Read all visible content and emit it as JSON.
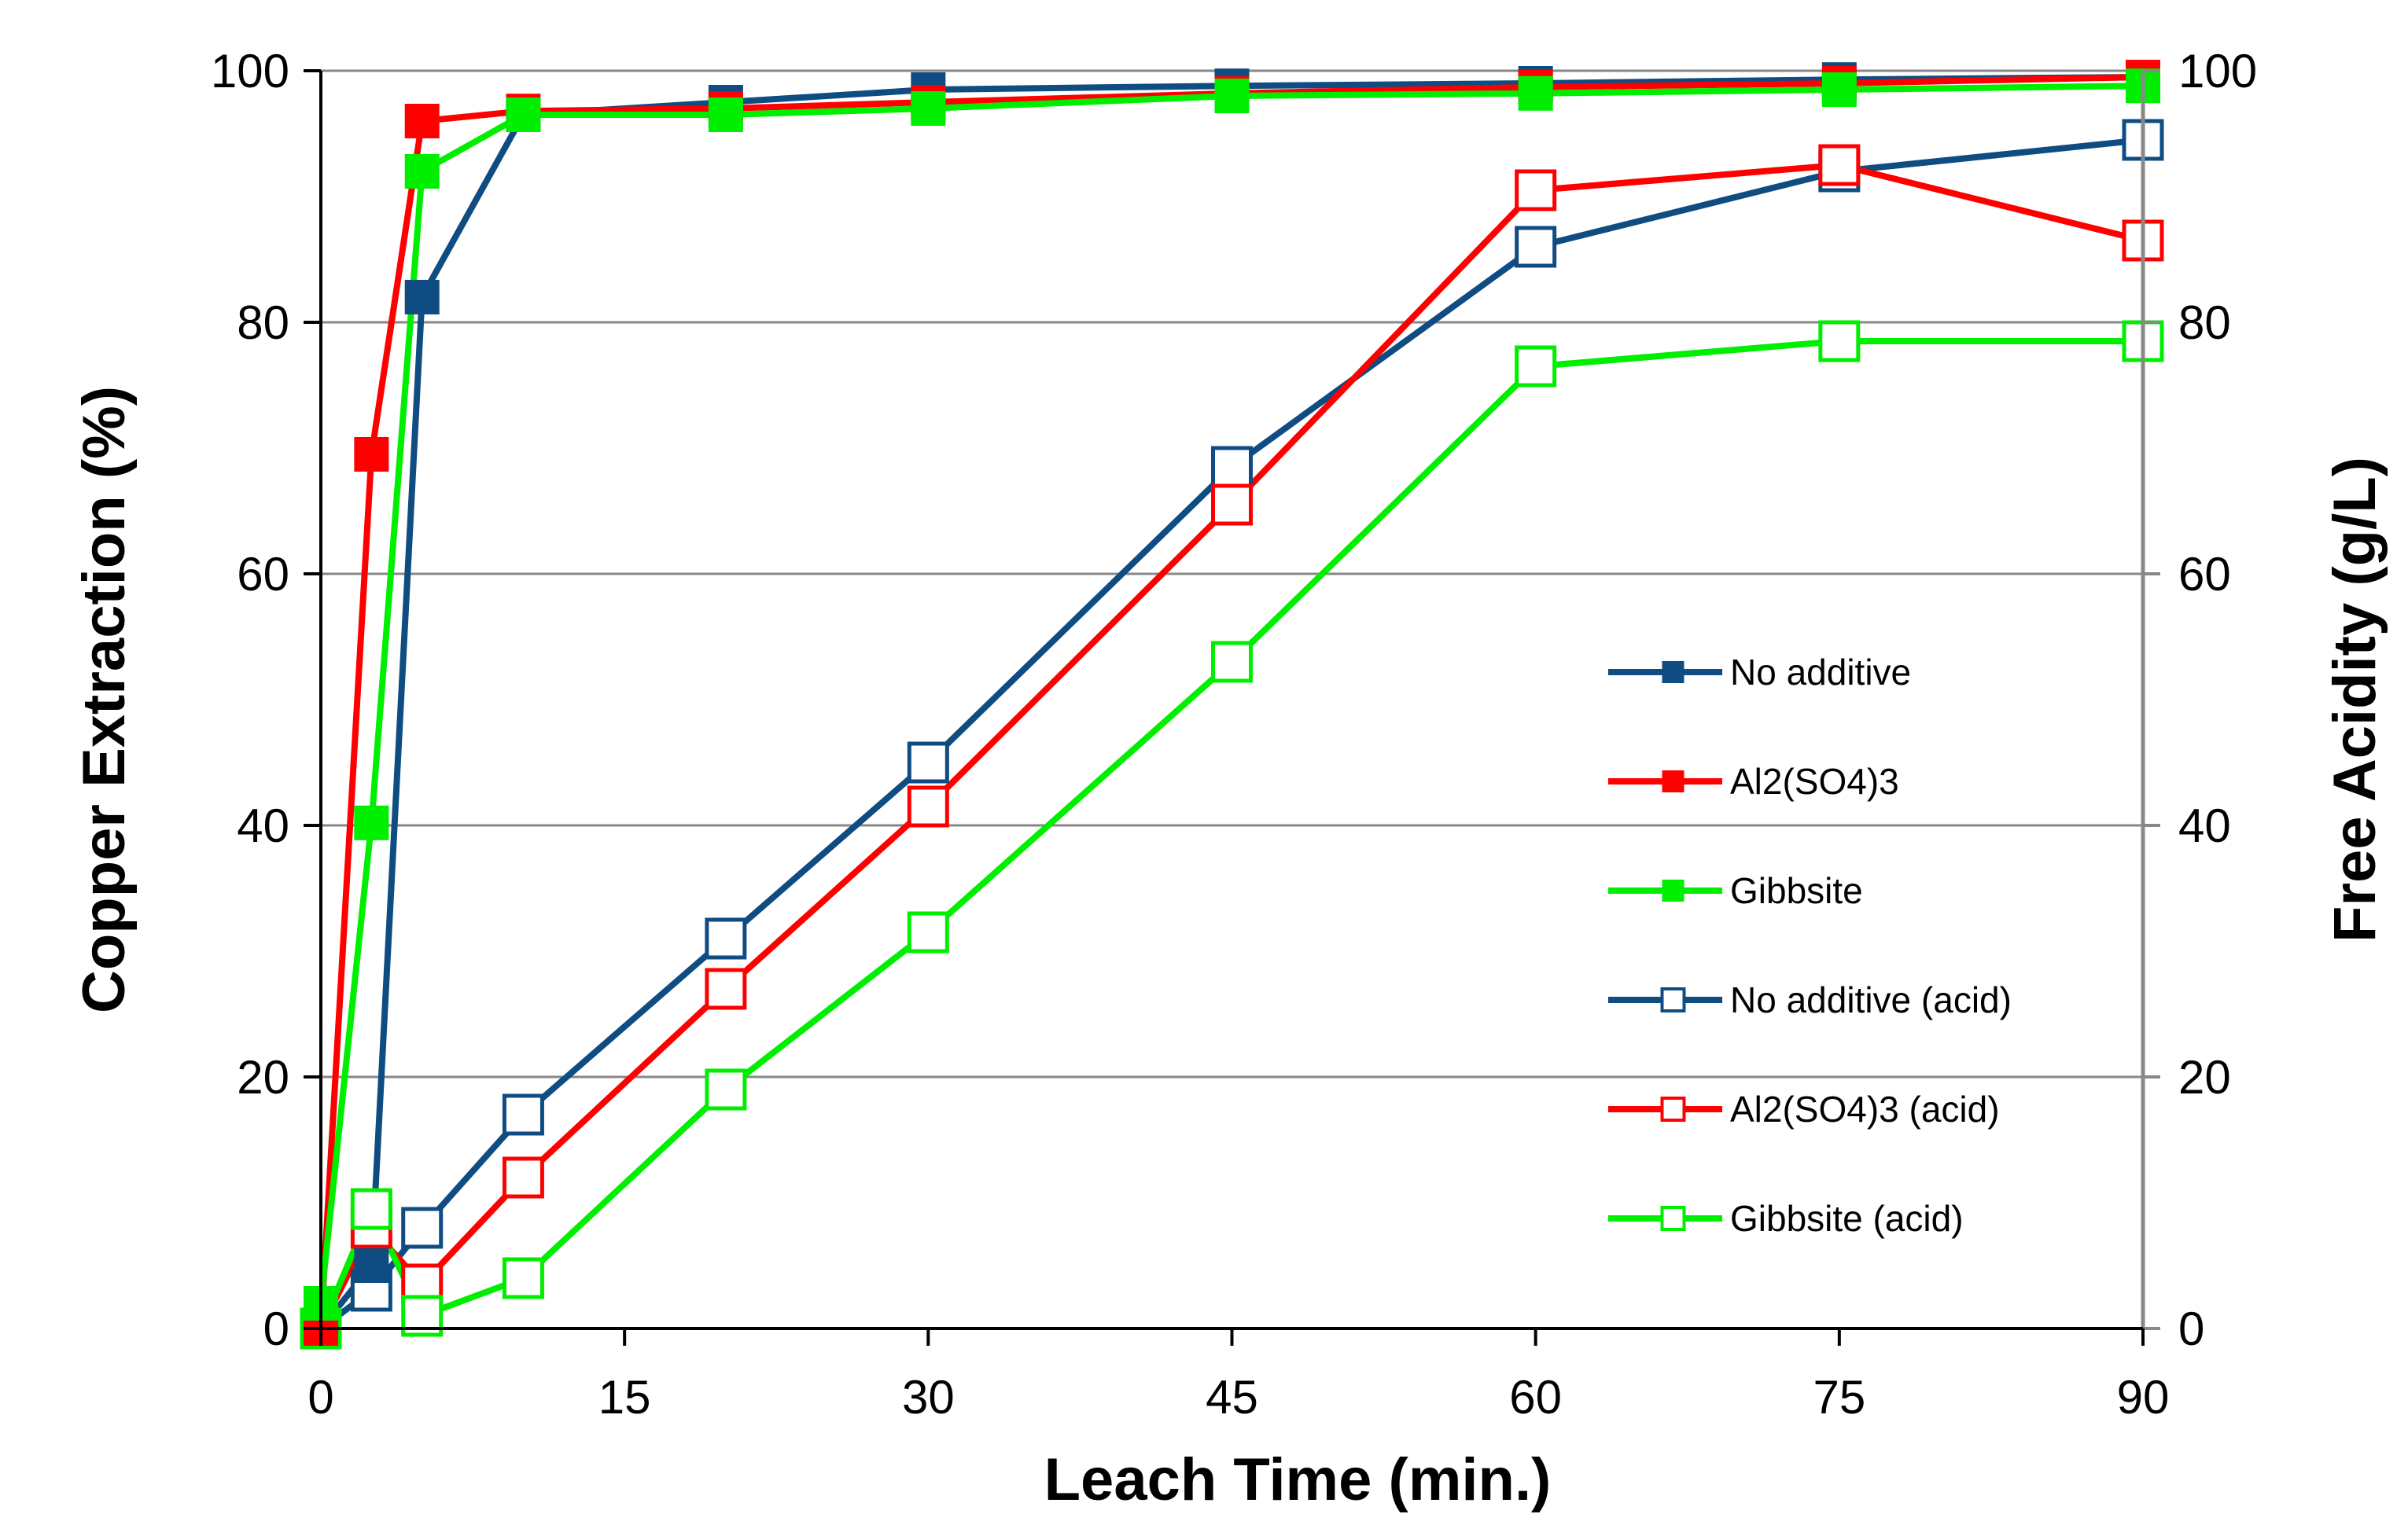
{
  "chart_data": {
    "type": "line",
    "title": "",
    "xlabel": "Leach Time (min.)",
    "ylabel": "Copper Extraction (%)",
    "y2label": "Free Acidity (g/L)",
    "xlim": [
      0,
      90
    ],
    "ylim": [
      0,
      100
    ],
    "y2lim": [
      0,
      100
    ],
    "x_ticks": [
      0,
      15,
      30,
      45,
      60,
      75,
      90
    ],
    "y_ticks": [
      0,
      20,
      40,
      60,
      80,
      100
    ],
    "y2_ticks": [
      0,
      20,
      40,
      60,
      80,
      100
    ],
    "x_tick_labels": [
      "0",
      "15",
      "30",
      "45",
      "60",
      "75",
      "90"
    ],
    "y_tick_labels": [
      "0",
      "20",
      "40",
      "60",
      "80",
      "100"
    ],
    "y2_tick_labels": [
      "0",
      "20",
      "40",
      "60",
      "80",
      "100"
    ],
    "grid": "horizontal",
    "legend_position": "right",
    "series": [
      {
        "name": "No additive",
        "axis": "left",
        "marker": "filled-square",
        "color": "#0F4C81",
        "x": [
          0,
          2.5,
          5,
          10,
          20,
          30,
          45,
          60,
          75,
          90
        ],
        "values": [
          0,
          5,
          82,
          96.5,
          97.5,
          98.5,
          98.8,
          99,
          99.3,
          99.5
        ]
      },
      {
        "name": "Al2(SO4)3",
        "axis": "left",
        "marker": "filled-square",
        "color": "#FF0000",
        "x": [
          0,
          2.5,
          5,
          10,
          20,
          30,
          45,
          60,
          75,
          90
        ],
        "values": [
          0,
          69.5,
          96,
          96.8,
          97,
          97.5,
          98.2,
          98.7,
          99,
          99.5
        ]
      },
      {
        "name": "Gibbsite",
        "axis": "left",
        "marker": "filled-square",
        "color": "#00EE00",
        "x": [
          0,
          2.5,
          5,
          10,
          20,
          30,
          45,
          60,
          75,
          90
        ],
        "values": [
          2,
          40.2,
          92,
          96.5,
          96.5,
          97,
          98,
          98.2,
          98.5,
          98.8
        ]
      },
      {
        "name": "No additive (acid)",
        "axis": "right",
        "marker": "open-square",
        "color": "#0F4C81",
        "x": [
          0,
          2.5,
          5,
          10,
          20,
          30,
          45,
          60,
          75,
          90
        ],
        "values": [
          0,
          3,
          8,
          17,
          31,
          45,
          68.5,
          86,
          92,
          94.5
        ]
      },
      {
        "name": "Al2(SO4)3 (acid)",
        "axis": "right",
        "marker": "open-square",
        "color": "#FF0000",
        "x": [
          0,
          2.5,
          5,
          10,
          20,
          30,
          45,
          60,
          75,
          90
        ],
        "values": [
          0,
          8,
          3.5,
          12,
          27,
          41.5,
          65.5,
          90.5,
          92.5,
          86.5
        ]
      },
      {
        "name": "Gibbsite (acid)",
        "axis": "right",
        "marker": "open-square",
        "color": "#00EE00",
        "x": [
          0,
          2.5,
          5,
          10,
          20,
          30,
          45,
          60,
          75,
          90
        ],
        "values": [
          0,
          9.5,
          1,
          4,
          19,
          31.5,
          53,
          76.5,
          78.5,
          78.5
        ]
      }
    ]
  }
}
